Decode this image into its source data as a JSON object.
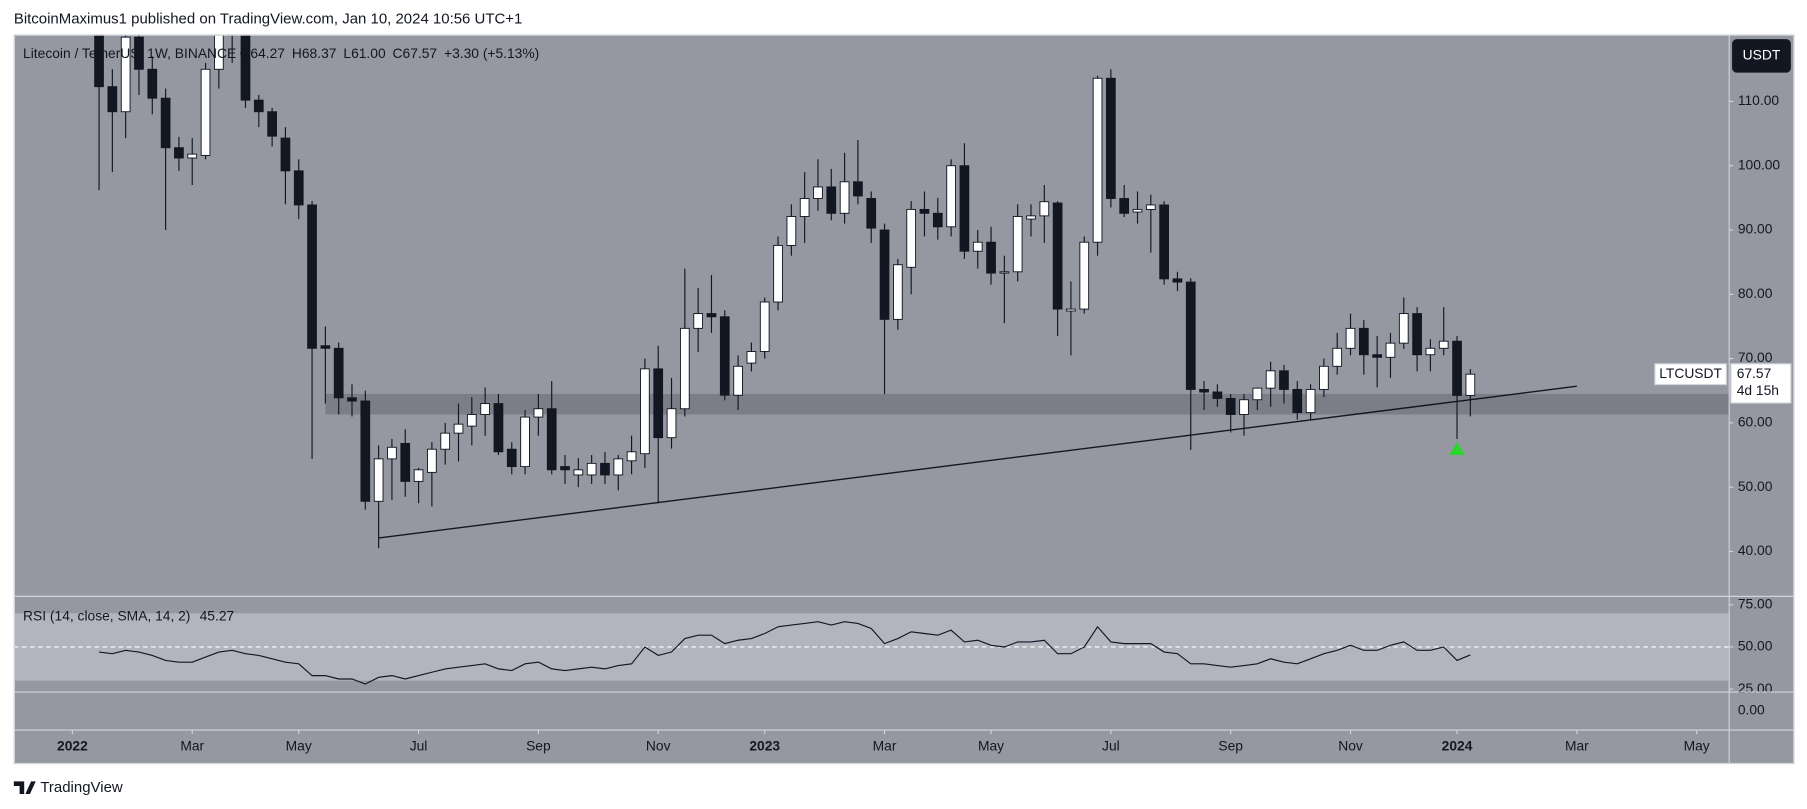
{
  "publisher_line": "BitcoinMaximus1 published on TradingView.com, Jan 10, 2024 10:56 UTC+1",
  "footer_brand": "TradingView",
  "currency_button": "USDT",
  "chart_data": {
    "type": "candlestick",
    "title": "Litecoin / TetherUS, 1W, BINANCE",
    "ohlc_legend": [
      {
        "key": "O",
        "value": "64.27"
      },
      {
        "key": "H",
        "value": "68.37"
      },
      {
        "key": "L",
        "value": "61.00"
      },
      {
        "key": "C",
        "value": "67.57"
      }
    ],
    "change_label": "+3.30 (+5.13%)",
    "up_color": "#ffffff",
    "down_color": "#131722",
    "candles": {
      "open": [
        121.0,
        112.3,
        108.4,
        120.0,
        115.0,
        110.5,
        102.8,
        101.2,
        101.6,
        115.0,
        120.4,
        121.0,
        110.2,
        108.4,
        104.3,
        99.2,
        93.9,
        72.0,
        71.6,
        63.9,
        63.4,
        47.8,
        54.4,
        56.8,
        50.9,
        52.3,
        55.9,
        58.4,
        59.5,
        61.3,
        63.0,
        55.9,
        53.2,
        60.9,
        62.2,
        53.2,
        51.9,
        51.9,
        53.7,
        51.9,
        54.1,
        55.2,
        68.4,
        57.7,
        62.2,
        74.7,
        77.0,
        76.5,
        64.3,
        69.3,
        71.1,
        78.8,
        87.6,
        92.1,
        94.9,
        96.7,
        92.6,
        97.5,
        94.9,
        90.0,
        76.1,
        84.2,
        93.2,
        92.6,
        90.5,
        100.0,
        86.7,
        88.1,
        83.3,
        83.5,
        91.7,
        92.2,
        94.2,
        77.4,
        77.7,
        88.1,
        113.6,
        94.9,
        92.8,
        93.2,
        93.9,
        82.4,
        81.9,
        65.2,
        64.8,
        63.8,
        61.3,
        63.6,
        65.4,
        68.1,
        65.2,
        61.6,
        65.2,
        68.8,
        71.6,
        74.7,
        70.6,
        70.2,
        72.4,
        77.0,
        70.6,
        71.6,
        72.7,
        64.27
      ],
      "high": [
        123.0,
        115.0,
        123.0,
        122.0,
        117.0,
        112.0,
        104.5,
        104.3,
        116.0,
        122.0,
        124.0,
        122.0,
        111.0,
        109.0,
        106.0,
        101.0,
        94.5,
        75.0,
        72.5,
        66.0,
        65.0,
        56.5,
        57.5,
        59.0,
        53.0,
        57.0,
        60.0,
        63.0,
        64.0,
        65.5,
        64.5,
        57.0,
        62.0,
        64.5,
        66.5,
        55.0,
        54.5,
        55.0,
        55.5,
        55.0,
        58.0,
        70.0,
        72.0,
        67.0,
        84.0,
        81.0,
        83.0,
        77.5,
        70.5,
        72.5,
        79.5,
        89.0,
        94.0,
        99.0,
        101.0,
        99.5,
        102.0,
        104.0,
        96.0,
        91.0,
        85.5,
        94.5,
        96.0,
        95.0,
        101.0,
        103.5,
        90.0,
        90.5,
        86.0,
        94.0,
        94.0,
        97.0,
        94.5,
        82.0,
        89.0,
        114.0,
        115.0,
        97.0,
        96.0,
        95.5,
        94.5,
        83.5,
        82.5,
        66.5,
        66.0,
        64.5,
        64.5,
        65.5,
        69.5,
        69.0,
        66.5,
        66.0,
        70.0,
        74.0,
        77.0,
        76.0,
        73.5,
        74.0,
        79.5,
        78.0,
        73.0,
        78.0,
        73.5,
        68.37
      ],
      "low": [
        96.2,
        99.0,
        104.3,
        111.0,
        108.0,
        90.0,
        99.2,
        97.0,
        101.0,
        112.0,
        116.0,
        109.0,
        106.0,
        103.0,
        94.0,
        91.7,
        54.4,
        63.0,
        61.3,
        61.0,
        46.5,
        40.5,
        48.0,
        48.5,
        47.5,
        47.0,
        53.5,
        54.0,
        56.5,
        58.0,
        55.0,
        52.0,
        52.0,
        58.0,
        52.0,
        50.5,
        50.0,
        50.5,
        50.5,
        49.5,
        52.0,
        53.0,
        47.5,
        56.0,
        61.0,
        71.0,
        74.0,
        63.5,
        62.0,
        68.0,
        70.0,
        77.5,
        86.0,
        88.0,
        93.0,
        91.5,
        91.0,
        94.0,
        88.0,
        64.5,
        74.5,
        80.0,
        89.0,
        88.5,
        89.0,
        85.5,
        84.0,
        81.5,
        75.5,
        82.0,
        89.0,
        88.0,
        73.5,
        70.5,
        77.0,
        86.0,
        93.5,
        92.0,
        91.0,
        86.5,
        81.5,
        80.5,
        55.8,
        62.0,
        62.5,
        58.5,
        58.0,
        62.0,
        62.5,
        63.0,
        60.5,
        60.5,
        64.0,
        67.5,
        70.5,
        67.5,
        65.5,
        67.0,
        71.5,
        68.0,
        68.0,
        70.5,
        57.5,
        61.0
      ],
      "close": [
        112.3,
        108.4,
        120.0,
        115.0,
        110.5,
        102.8,
        101.2,
        101.8,
        115.0,
        120.4,
        121.0,
        110.2,
        108.4,
        104.6,
        99.2,
        93.9,
        71.6,
        71.6,
        63.9,
        63.4,
        47.8,
        54.4,
        56.2,
        50.9,
        52.7,
        55.9,
        58.4,
        59.8,
        61.3,
        63.0,
        55.5,
        53.2,
        60.9,
        62.2,
        52.7,
        52.7,
        52.7,
        53.7,
        51.9,
        54.4,
        55.5,
        68.4,
        57.7,
        62.2,
        74.7,
        77.0,
        76.5,
        64.3,
        68.8,
        71.1,
        78.8,
        87.6,
        92.1,
        94.9,
        96.7,
        92.6,
        97.5,
        95.3,
        90.3,
        76.1,
        84.6,
        93.2,
        92.6,
        90.5,
        100.0,
        86.7,
        88.1,
        83.3,
        83.5,
        92.1,
        92.2,
        94.4,
        77.7,
        77.7,
        88.1,
        113.6,
        94.9,
        92.6,
        93.2,
        93.9,
        82.4,
        81.9,
        65.2,
        64.8,
        63.8,
        61.3,
        63.6,
        65.4,
        68.1,
        65.2,
        61.6,
        65.2,
        68.8,
        71.6,
        74.7,
        70.6,
        70.2,
        72.4,
        77.0,
        70.6,
        71.6,
        72.7,
        64.27,
        67.57
      ]
    },
    "xlim": [
      -6.4,
      122.4
    ],
    "xticks": [
      {
        "value": -2,
        "label": "2022"
      },
      {
        "value": 7,
        "label": "Mar"
      },
      {
        "value": 15,
        "label": "May"
      },
      {
        "value": 24,
        "label": "Jul"
      },
      {
        "value": 33,
        "label": "Sep"
      },
      {
        "value": 42,
        "label": "Nov"
      },
      {
        "value": 50,
        "label": "2023"
      },
      {
        "value": 59,
        "label": "Mar"
      },
      {
        "value": 67,
        "label": "May"
      },
      {
        "value": 76,
        "label": "Jul"
      },
      {
        "value": 85,
        "label": "Sep"
      },
      {
        "value": 94,
        "label": "Nov"
      },
      {
        "value": 102,
        "label": "2024"
      },
      {
        "value": 111,
        "label": "Mar"
      },
      {
        "value": 120,
        "label": "May"
      }
    ],
    "ylim": [
      33.1,
      120.4
    ],
    "yticks": [
      {
        "value": 40,
        "label": "40.00"
      },
      {
        "value": 50,
        "label": "50.00"
      },
      {
        "value": 60,
        "label": "60.00"
      },
      {
        "value": 70,
        "label": "70.00"
      },
      {
        "value": 80,
        "label": "80.00"
      },
      {
        "value": 90,
        "label": "90.00"
      },
      {
        "value": 100,
        "label": "100.00"
      },
      {
        "value": 110,
        "label": "110.00"
      }
    ],
    "support_zone": {
      "from_index": 17,
      "values": [
        61.3,
        64.5
      ]
    },
    "trendline": {
      "x": [
        21,
        111
      ],
      "values": [
        42.1,
        65.7
      ]
    },
    "marker": {
      "index": 102,
      "value": 55.9,
      "color": "#2bd52b"
    },
    "last_price_label": {
      "symbol": "LTCUSDT",
      "price": "67.57",
      "countdown": "4d 15h"
    },
    "rsi": {
      "title": "RSI (14, close, SMA, 14, 2)",
      "ylim": [
        23.6,
        79.7
      ],
      "yticks": [
        {
          "value": 75,
          "label": "75.00"
        },
        {
          "value": 50,
          "label": "50.00"
        },
        {
          "value": 25,
          "label": "25.00"
        }
      ],
      "band": [
        30,
        70
      ],
      "values": [
        47,
        46,
        48,
        47,
        45,
        42,
        41,
        41,
        44,
        47,
        48,
        46,
        45,
        43,
        41,
        40,
        33,
        33,
        31,
        31,
        28,
        32,
        33,
        31,
        33,
        35,
        37,
        38,
        39,
        40,
        37,
        36,
        40,
        41,
        37,
        36,
        37,
        38,
        37,
        39,
        40,
        50,
        45,
        47,
        55,
        57,
        57,
        52,
        54,
        55,
        58,
        62,
        63,
        64,
        65,
        63,
        65,
        64,
        61,
        52,
        55,
        59,
        58,
        57,
        60,
        53,
        54,
        51,
        50,
        53,
        53,
        54,
        46,
        46,
        50,
        62,
        53,
        52,
        52,
        52,
        47,
        46,
        40,
        40,
        39,
        38,
        39,
        40,
        43,
        41,
        40,
        43,
        46,
        48,
        51,
        48,
        48,
        51,
        53,
        48,
        48,
        50,
        42,
        45.27
      ]
    },
    "empty_pane_yticks": [
      {
        "value": 0,
        "label": "0.00"
      }
    ]
  }
}
